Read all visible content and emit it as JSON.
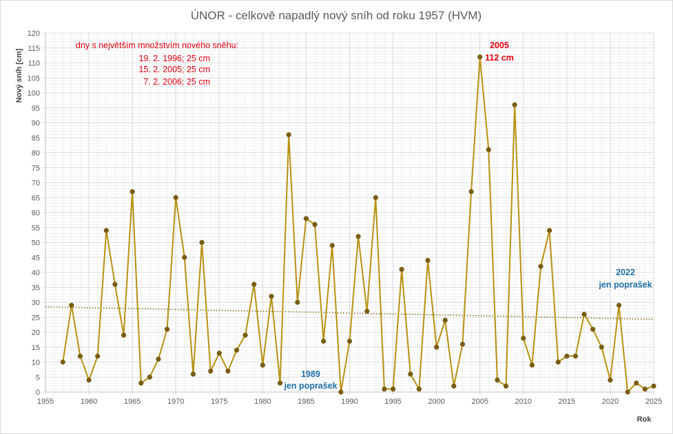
{
  "chart_data": {
    "type": "line",
    "title": "ÚNOR - celkově napadlý nový sníh od roku 1957 (HVM)",
    "xlabel": "Rok",
    "ylabel": "Nový sníh [cm]",
    "xlim": [
      1955,
      2025
    ],
    "ylim": [
      0,
      120
    ],
    "x_ticks": [
      "1955",
      "1960",
      "1965",
      "1970",
      "1975",
      "1980",
      "1985",
      "1990",
      "1995",
      "2000",
      "2005",
      "2010",
      "2015",
      "2020",
      "2025"
    ],
    "y_ticks": [
      "0",
      "5",
      "10",
      "15",
      "20",
      "25",
      "30",
      "35",
      "40",
      "45",
      "50",
      "55",
      "60",
      "65",
      "70",
      "75",
      "80",
      "85",
      "90",
      "95",
      "100",
      "105",
      "110",
      "115",
      "120"
    ],
    "grid": true,
    "legend": "none",
    "series": [
      {
        "x": [
          1957,
          1958,
          1959,
          1960,
          1961,
          1962,
          1963,
          1964,
          1965,
          1966,
          1967,
          1968,
          1969,
          1970,
          1971,
          1972,
          1973,
          1974,
          1975,
          1976,
          1977,
          1978,
          1979,
          1980,
          1981,
          1982,
          1983,
          1984,
          1985,
          1986,
          1987,
          1988,
          1989,
          1990,
          1991,
          1992,
          1993,
          1994,
          1995,
          1996,
          1997,
          1998,
          1999,
          2000,
          2001,
          2002,
          2003,
          2004,
          2005,
          2006,
          2007,
          2008,
          2009,
          2010,
          2011,
          2012,
          2013,
          2014,
          2015,
          2016,
          2017,
          2018,
          2019,
          2020,
          2021,
          2022,
          2023,
          2024,
          2025
        ],
        "values": [
          10,
          29,
          12,
          4,
          12,
          54,
          36,
          19,
          67,
          3,
          5,
          11,
          21,
          65,
          45,
          6,
          50,
          7,
          13,
          7,
          14,
          19,
          36,
          9,
          32,
          3,
          86,
          30,
          58,
          56,
          17,
          49,
          0,
          17,
          52,
          27,
          65,
          1,
          1,
          41,
          6,
          1,
          44,
          15,
          24,
          2,
          16,
          67,
          112,
          81,
          4,
          2,
          96,
          18,
          9,
          42,
          54,
          10,
          12,
          12,
          26,
          21,
          15,
          4,
          29,
          0,
          3,
          1,
          2
        ]
      }
    ],
    "trendline": {
      "type": "linear",
      "start": [
        1955,
        28.5
      ],
      "end": [
        2025,
        24.3
      ]
    },
    "annotations": {
      "top_days_header": "dny s největším množstvím nového sněhu:",
      "top_days_line1": "19. 2. 1996; 25 cm",
      "top_days_line2": "15. 2. 2005; 25 cm",
      "top_days_line3": "7. 2. 2006; 25 cm",
      "max_year": "2005",
      "max_value": "112 cm",
      "note_1989_year": "1989",
      "note_1989_text": "jen poprašek",
      "note_2022_year": "2022",
      "note_2022_text": "jen poprašek"
    },
    "colors": {
      "line": "#b8900f",
      "marker": "#7a5c12",
      "trend": "#8a6a1a",
      "grid_major": "#d9d9d9",
      "grid_minor": "#efefef"
    }
  }
}
